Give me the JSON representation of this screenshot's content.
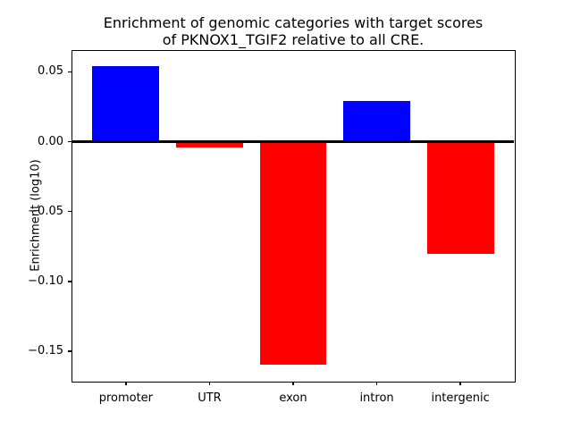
{
  "figure": {
    "title_line1": "Enrichment of genomic categories with target scores",
    "title_line2": "of PKNOX1_TGIF2 relative to all CRE.",
    "ylabel": "Enrichment (log10)"
  },
  "chart_data": {
    "type": "bar",
    "title": "Enrichment of genomic categories with target scores\nof PKNOX1_TGIF2 relative to all CRE.",
    "xlabel": "",
    "ylabel": "Enrichment (log10)",
    "categories": [
      "promoter",
      "UTR",
      "exon",
      "intron",
      "intergenic"
    ],
    "values": [
      0.054,
      -0.004,
      -0.16,
      0.029,
      -0.08
    ],
    "bar_colors": [
      "#0000ff",
      "#ff0000",
      "#ff0000",
      "#0000ff",
      "#ff0000"
    ],
    "positive_color": "#0000ff",
    "negative_color": "#ff0000",
    "bar_width": 0.8,
    "yticks": [
      0.05,
      0.0,
      -0.05,
      -0.1,
      -0.15
    ],
    "ytick_labels": [
      "0.05",
      "0.00",
      "−0.05",
      "−0.10",
      "−0.15"
    ],
    "ylim": [
      -0.1712,
      0.065
    ],
    "xlim": [
      -0.64,
      4.64
    ],
    "grid": false,
    "legend": null,
    "zero_line": {
      "y": 0,
      "color": "#000000",
      "linewidth": 3
    },
    "axis_color": "#000000",
    "background": "#ffffff"
  }
}
